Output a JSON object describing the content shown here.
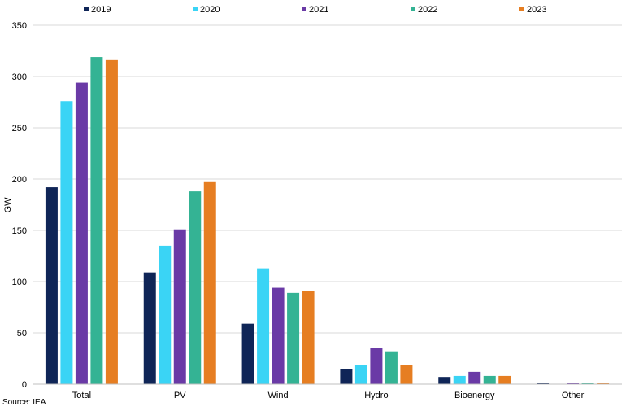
{
  "chart_data": {
    "type": "bar",
    "categories": [
      "Total",
      "PV",
      "Wind",
      "Hydro",
      "Bioenergy",
      "Other"
    ],
    "series": [
      {
        "name": "2019",
        "color": "#0f2557",
        "values": [
          192,
          109,
          59,
          15,
          7,
          1
        ]
      },
      {
        "name": "2020",
        "color": "#3ad4f5",
        "values": [
          276,
          135,
          113,
          19,
          8,
          0
        ]
      },
      {
        "name": "2021",
        "color": "#6a3aa6",
        "values": [
          294,
          151,
          94,
          35,
          12,
          1
        ]
      },
      {
        "name": "2022",
        "color": "#34b394",
        "values": [
          319,
          188,
          89,
          32,
          8,
          1
        ]
      },
      {
        "name": "2023",
        "color": "#e67e22",
        "values": [
          316,
          197,
          91,
          19,
          8,
          1
        ]
      }
    ],
    "ylabel": "GW",
    "ylim": [
      0,
      350
    ],
    "yticks": [
      0,
      50,
      100,
      150,
      200,
      250,
      300,
      350
    ],
    "grid": true,
    "legend_position": "top"
  },
  "source": "Source: IEA"
}
